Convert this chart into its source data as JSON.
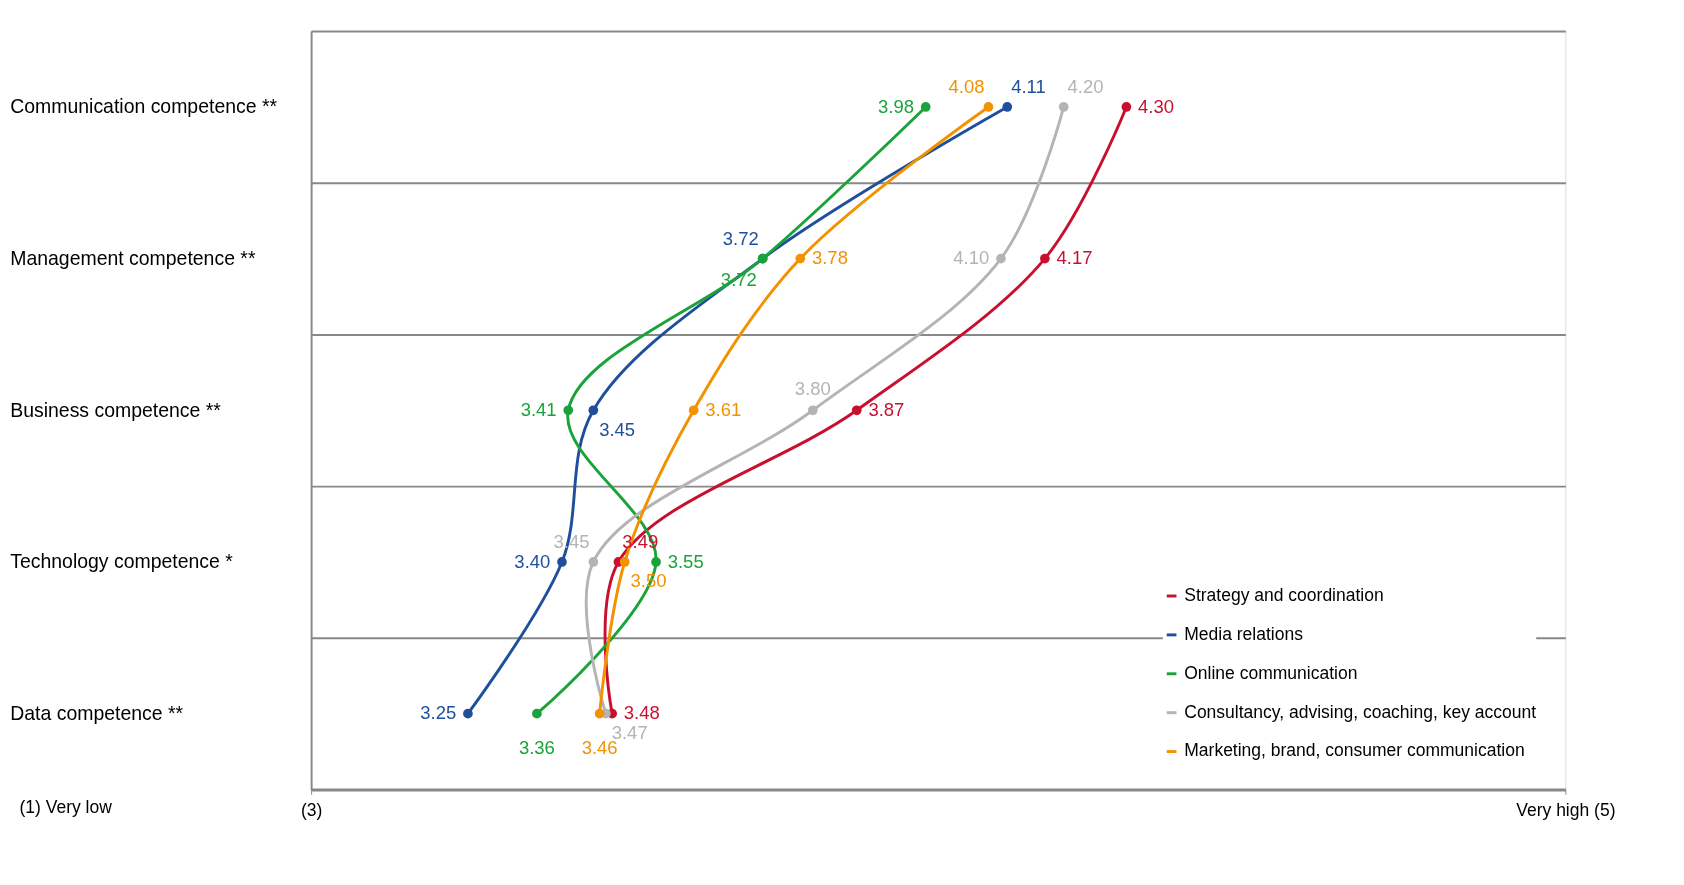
{
  "chart_data": {
    "type": "line",
    "orientation": "horizontal",
    "categories": [
      "Communication competence **",
      "Management competence **",
      "Business competence **",
      "Technology competence *",
      "Data competence **"
    ],
    "series": [
      {
        "name": "Strategy and coordination",
        "color": "#c8102e",
        "values": [
          4.3,
          4.17,
          3.87,
          3.49,
          3.48
        ],
        "value_labels": [
          "4.30",
          "4.17",
          "3.87",
          "3.49",
          "3.48"
        ]
      },
      {
        "name": "Media relations",
        "color": "#1f4e9c",
        "values": [
          4.11,
          3.72,
          3.45,
          3.4,
          3.25
        ],
        "value_labels": [
          "4.11",
          "3.72",
          "3.45",
          "3.40",
          "3.25"
        ]
      },
      {
        "name": "Online communication",
        "color": "#1aa33a",
        "values": [
          3.98,
          3.72,
          3.41,
          3.55,
          3.36
        ],
        "value_labels": [
          "3.98",
          "3.72",
          "3.41",
          "3.55",
          "3.36"
        ]
      },
      {
        "name": "Consultancy, advising, coaching, key account",
        "color": "#b4b4b4",
        "values": [
          4.2,
          4.1,
          3.8,
          3.45,
          3.47
        ],
        "value_labels": [
          "4.20",
          "4.10",
          "3.80",
          "3.45",
          "3.47"
        ]
      },
      {
        "name": "Marketing, brand, consumer communication",
        "color": "#f39200",
        "values": [
          4.08,
          3.78,
          3.61,
          3.5,
          3.46
        ],
        "value_labels": [
          "4.08",
          "3.78",
          "3.61",
          "3.50",
          "3.46"
        ]
      }
    ],
    "xlim": [
      3,
      5
    ],
    "xticks": [
      {
        "value": 3,
        "label": "(3)"
      },
      {
        "value": 5,
        "label": "Very high (5)"
      }
    ],
    "annotations": [
      "(1) Very low"
    ],
    "grid": "y",
    "legend": "bottom right",
    "marker": "circle",
    "line_style": "solid"
  }
}
